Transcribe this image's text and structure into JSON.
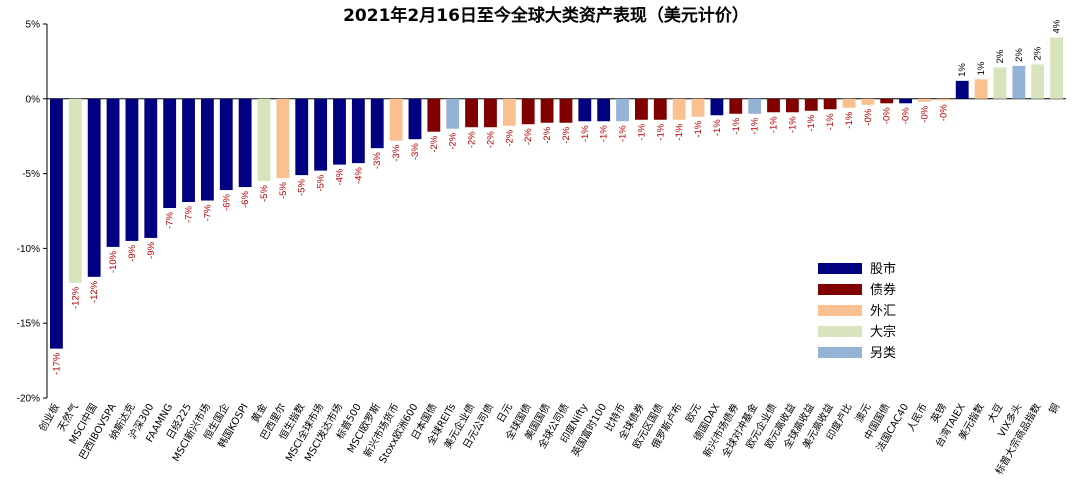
{
  "chart_data": {
    "type": "bar",
    "title": "2021年2月16日至今全球大类资产表现（美元计价）",
    "ylim": [
      -20,
      5
    ],
    "yticks": [
      5,
      0,
      -5,
      -10,
      -15,
      -20
    ],
    "ytick_labels": [
      "5%",
      "0%",
      "-5%",
      "-10%",
      "-15%",
      "-20%"
    ],
    "grid": false,
    "legend_position": "right",
    "legend": [
      {
        "key": "equity",
        "label": "股市",
        "color": "#000080"
      },
      {
        "key": "bond",
        "label": "债券",
        "color": "#800000"
      },
      {
        "key": "fx",
        "label": "外汇",
        "color": "#FAC090"
      },
      {
        "key": "commodity",
        "label": "大宗",
        "color": "#D7E4BD"
      },
      {
        "key": "alt",
        "label": "另类",
        "color": "#95B3D7"
      }
    ],
    "categories": [
      "创业板",
      "天然气",
      "MSCI中国",
      "巴西IBOVSPA",
      "纳斯达克",
      "沪深300",
      "FAAMNG",
      "日经225",
      "MSCI新兴市场",
      "恒生国企",
      "韩国KOSPI",
      "黄金",
      "巴西里尔",
      "恒生指数",
      "MSCI全球市场",
      "MSCI发达市场",
      "标普500",
      "MSCI欧罗斯",
      "新兴市场货币",
      "Stoxx欧洲600",
      "日本国债",
      "全球REITs",
      "美元企业债",
      "日元公司债",
      "日元",
      "全球国债",
      "美国国债",
      "全球公司债",
      "印度Nifty",
      "英国富时100",
      "比特币",
      "全球债券",
      "欧元区国债",
      "俄罗斯卢布",
      "欧元",
      "德国DAX",
      "新兴市场债券",
      "全球对冲基金",
      "欧元企业债",
      "欧元高收益",
      "全球高收益",
      "美元高收益",
      "印度卢比",
      "澳元",
      "中国国债",
      "法国CAC40",
      "人民币",
      "英镑",
      "台湾TAIEX",
      "美元指数",
      "大豆",
      "VIX多头",
      "标普大宗商品指数",
      "铜"
    ],
    "groups": [
      "equity",
      "commodity",
      "equity",
      "equity",
      "equity",
      "equity",
      "equity",
      "equity",
      "equity",
      "equity",
      "equity",
      "commodity",
      "fx",
      "equity",
      "equity",
      "equity",
      "equity",
      "equity",
      "fx",
      "equity",
      "bond",
      "alt",
      "bond",
      "bond",
      "fx",
      "bond",
      "bond",
      "bond",
      "equity",
      "equity",
      "alt",
      "bond",
      "bond",
      "fx",
      "fx",
      "equity",
      "bond",
      "alt",
      "bond",
      "bond",
      "bond",
      "bond",
      "fx",
      "fx",
      "bond",
      "equity",
      "fx",
      "fx",
      "equity",
      "fx",
      "commodity",
      "alt",
      "commodity",
      "commodity"
    ],
    "values": [
      -16.7,
      -12.3,
      -11.9,
      -9.9,
      -9.5,
      -9.3,
      -7.3,
      -6.9,
      -6.8,
      -6.1,
      -5.9,
      -5.5,
      -5.3,
      -5.1,
      -4.8,
      -4.4,
      -4.3,
      -3.3,
      -2.8,
      -2.7,
      -2.2,
      -2.0,
      -1.9,
      -1.9,
      -1.8,
      -1.7,
      -1.6,
      -1.6,
      -1.5,
      -1.5,
      -1.5,
      -1.4,
      -1.4,
      -1.4,
      -1.2,
      -1.1,
      -1.0,
      -1.0,
      -0.9,
      -0.9,
      -0.8,
      -0.7,
      -0.6,
      -0.4,
      -0.3,
      -0.3,
      -0.2,
      -0.1,
      1.2,
      1.3,
      2.1,
      2.2,
      2.3,
      4.1
    ],
    "data_labels": [
      "-17%",
      "-12%",
      "-12%",
      "-10%",
      "-9%",
      "-9%",
      "-7%",
      "-7%",
      "-7%",
      "-6%",
      "-6%",
      "-5%",
      "-5%",
      "-5%",
      "-5%",
      "-4%",
      "-4%",
      "-3%",
      "-3%",
      "-3%",
      "-2%",
      "-2%",
      "-2%",
      "-2%",
      "-2%",
      "-2%",
      "-2%",
      "-2%",
      "-1%",
      "-1%",
      "-1%",
      "-1%",
      "-1%",
      "-1%",
      "-1%",
      "-1%",
      "-1%",
      "-1%",
      "-1%",
      "-1%",
      "-1%",
      "-1%",
      "-1%",
      "-0%",
      "-0%",
      "-0%",
      "-0%",
      "-0%",
      "1%",
      "1%",
      "2%",
      "2%",
      "2%",
      "4%"
    ],
    "data_label_color_negative": "#C00000",
    "data_label_color_positive": "#000000"
  }
}
